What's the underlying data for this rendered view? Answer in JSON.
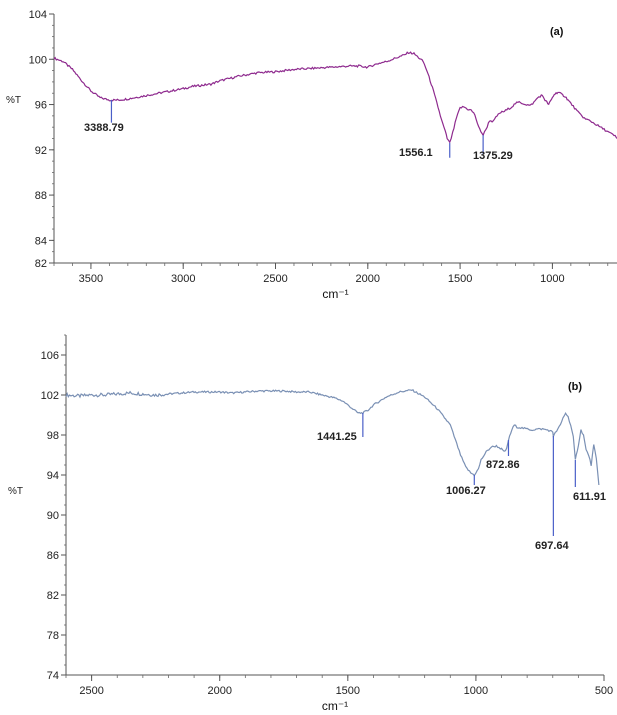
{
  "chart_data": [
    {
      "type": "line",
      "panel_label": "(a)",
      "xlabel": "cm⁻¹",
      "ylabel": "%T",
      "xlim": [
        3700,
        650
      ],
      "ylim": [
        82,
        104
      ],
      "x_ticks": [
        3500,
        3000,
        2500,
        2000,
        1500,
        1000
      ],
      "y_ticks": [
        82,
        84,
        88,
        92,
        96,
        100,
        104
      ],
      "color": "#8e2a8e",
      "series": [
        {
          "x": [
            3700,
            3650,
            3600,
            3550,
            3500,
            3450,
            3400,
            3388.79,
            3350,
            3300,
            3200,
            3100,
            3000,
            2950,
            2900,
            2850,
            2800,
            2700,
            2600,
            2500,
            2400,
            2300,
            2200,
            2100,
            2050,
            2000,
            1950,
            1900,
            1850,
            1800,
            1780,
            1750,
            1700,
            1680,
            1650,
            1620,
            1600,
            1580,
            1570,
            1556.1,
            1540,
            1520,
            1500,
            1480,
            1460,
            1440,
            1420,
            1400,
            1375.29,
            1360,
            1340,
            1320,
            1300,
            1280,
            1260,
            1240,
            1220,
            1200,
            1180,
            1160,
            1140,
            1120,
            1100,
            1080,
            1060,
            1050,
            1040,
            1030,
            1020,
            1010,
            1000,
            990,
            980,
            970,
            960,
            950,
            940,
            930,
            920,
            910,
            900,
            880,
            860,
            840,
            820,
            800,
            780,
            760,
            740,
            720,
            700,
            680,
            660,
            650
          ],
          "y": [
            100.1,
            99.8,
            99.1,
            98.1,
            97.2,
            96.6,
            96.4,
            96.4,
            96.4,
            96.5,
            96.8,
            97.1,
            97.4,
            97.6,
            97.7,
            97.8,
            98.1,
            98.5,
            98.8,
            98.9,
            99.1,
            99.2,
            99.3,
            99.4,
            99.4,
            99.3,
            99.6,
            99.8,
            100.1,
            100.4,
            100.6,
            100.5,
            99.8,
            99.0,
            97.5,
            95.8,
            94.6,
            93.6,
            93.0,
            92.6,
            93.5,
            94.8,
            95.7,
            95.8,
            95.6,
            95.5,
            95.1,
            94.0,
            93.3,
            93.8,
            94.6,
            94.5,
            95.0,
            95.3,
            95.4,
            95.6,
            95.8,
            96.1,
            96.2,
            96.1,
            96.0,
            95.9,
            96.2,
            96.6,
            96.8,
            96.7,
            96.4,
            96.2,
            96.0,
            96.3,
            96.6,
            96.9,
            97.0,
            97.1,
            97.0,
            96.9,
            96.8,
            96.7,
            96.5,
            96.3,
            96.1,
            95.7,
            95.3,
            95.0,
            94.7,
            94.6,
            94.4,
            94.2,
            94.0,
            93.8,
            93.6,
            93.4,
            93.2,
            93.0
          ]
        }
      ],
      "annotations": [
        {
          "x": 3388.79,
          "label": "3388.79",
          "line_to_y": 94.4
        },
        {
          "x": 1556.1,
          "label": "1556.1",
          "line_to_y": 91.3
        },
        {
          "x": 1375.29,
          "label": "1375.29",
          "line_to_y": 91.6
        }
      ]
    },
    {
      "type": "line",
      "panel_label": "(b)",
      "xlabel": "cm⁻¹",
      "ylabel": "%T",
      "xlim": [
        2600,
        500
      ],
      "ylim": [
        74,
        108
      ],
      "x_ticks": [
        2500,
        2000,
        1500,
        1000,
        500
      ],
      "y_ticks": [
        74,
        78,
        82,
        86,
        90,
        94,
        98,
        102,
        106
      ],
      "color": "#7a90b4",
      "series": [
        {
          "x": [
            2600,
            2550,
            2500,
            2450,
            2400,
            2350,
            2300,
            2250,
            2200,
            2150,
            2100,
            2050,
            2000,
            1950,
            1900,
            1850,
            1800,
            1750,
            1700,
            1650,
            1600,
            1550,
            1520,
            1500,
            1480,
            1460,
            1441.25,
            1420,
            1400,
            1350,
            1300,
            1250,
            1200,
            1150,
            1100,
            1080,
            1060,
            1040,
            1020,
            1006.27,
            990,
            980,
            960,
            940,
            920,
            900,
            890,
            880,
            872.86,
            860,
            850,
            840,
            820,
            800,
            780,
            760,
            740,
            720,
            710,
            700,
            697.64,
            690,
            680,
            670,
            660,
            650,
            640,
            630,
            620,
            611.91,
            600,
            590,
            580,
            570,
            560,
            550,
            540,
            530,
            520
          ],
          "y": [
            102.0,
            101.9,
            102.0,
            102.0,
            102.1,
            102.2,
            102.1,
            102.0,
            102.1,
            102.2,
            102.3,
            102.3,
            102.3,
            102.2,
            102.3,
            102.4,
            102.4,
            102.4,
            102.3,
            102.3,
            102.0,
            101.7,
            101.4,
            101.0,
            100.6,
            100.2,
            100.2,
            100.5,
            101.0,
            101.8,
            102.3,
            102.5,
            101.8,
            100.6,
            99.0,
            97.5,
            96.0,
            94.8,
            94.2,
            94.0,
            94.6,
            95.5,
            96.3,
            96.8,
            96.9,
            96.6,
            96.3,
            96.6,
            97.5,
            98.5,
            99.0,
            98.8,
            98.7,
            98.6,
            98.5,
            98.6,
            98.6,
            98.5,
            98.4,
            98.3,
            97.9,
            98.2,
            98.6,
            99.0,
            99.7,
            100.2,
            99.8,
            99.0,
            97.8,
            95.5,
            97.0,
            98.5,
            98.0,
            96.5,
            96.0,
            95.0,
            97.0,
            95.6,
            93.0
          ]
        }
      ],
      "annotations": [
        {
          "x": 1441.25,
          "label": "1441.25",
          "line_to_y": 97.8
        },
        {
          "x": 1006.27,
          "label": "1006.27",
          "line_to_y": 93.0
        },
        {
          "x": 872.86,
          "label": "872.86",
          "line_to_y": 95.9
        },
        {
          "x": 697.64,
          "label": "697.64",
          "line_to_y": 87.9
        },
        {
          "x": 611.91,
          "label": "611.91",
          "line_to_y": 92.8
        }
      ]
    }
  ]
}
